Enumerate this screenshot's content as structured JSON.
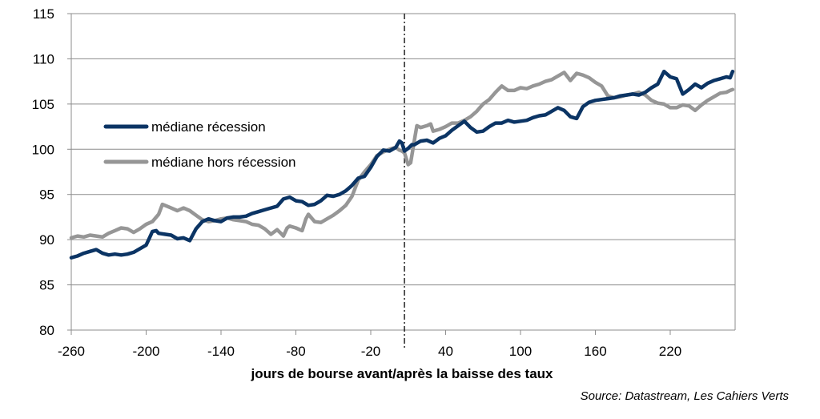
{
  "chart_data": {
    "type": "line",
    "title": "",
    "xlabel": "jours de bourse avant/après la baisse des  taux",
    "ylabel": "",
    "source": "Source: Datastream, Les Cahiers Verts",
    "xlim": [
      -260,
      272
    ],
    "ylim": [
      80,
      115
    ],
    "x_ticks": [
      -260,
      -200,
      -140,
      -80,
      -20,
      40,
      100,
      160,
      220
    ],
    "x_tick_labels": [
      "-260",
      "-200",
      "-140",
      "-80",
      "-20",
      "40",
      "100",
      "160",
      "220"
    ],
    "y_ticks": [
      80,
      85,
      90,
      95,
      100,
      105,
      110,
      115
    ],
    "y_tick_labels": [
      "80",
      "85",
      "90",
      "95",
      "100",
      "105",
      "110",
      "115"
    ],
    "grid": "horizontal",
    "reference_line": {
      "x": 7,
      "style": "dash-dot"
    },
    "legend_position": "left",
    "series": [
      {
        "name": "médiane récession",
        "color": "#0b3464",
        "x": [
          -260,
          -255,
          -250,
          -245,
          -240,
          -235,
          -230,
          -225,
          -220,
          -215,
          -210,
          -205,
          -200,
          -197,
          -195,
          -192,
          -190,
          -185,
          -180,
          -175,
          -170,
          -165,
          -160,
          -155,
          -150,
          -145,
          -140,
          -135,
          -130,
          -125,
          -120,
          -115,
          -110,
          -105,
          -100,
          -95,
          -90,
          -85,
          -80,
          -75,
          -70,
          -65,
          -60,
          -55,
          -50,
          -45,
          -40,
          -35,
          -30,
          -25,
          -20,
          -15,
          -10,
          -5,
          0,
          3,
          5,
          7,
          10,
          13,
          15,
          20,
          25,
          30,
          35,
          40,
          45,
          50,
          55,
          60,
          65,
          70,
          75,
          80,
          85,
          90,
          95,
          100,
          105,
          110,
          115,
          120,
          125,
          130,
          135,
          140,
          145,
          150,
          155,
          160,
          165,
          170,
          175,
          180,
          185,
          190,
          195,
          200,
          205,
          210,
          215,
          220,
          225,
          230,
          235,
          240,
          245,
          250,
          255,
          260,
          265,
          268,
          270
        ],
        "values": [
          88.0,
          88.2,
          88.5,
          88.7,
          88.9,
          88.5,
          88.3,
          88.4,
          88.3,
          88.4,
          88.6,
          89.0,
          89.4,
          90.3,
          90.9,
          91.0,
          90.7,
          90.6,
          90.5,
          90.1,
          90.2,
          89.9,
          91.2,
          92.0,
          92.3,
          92.1,
          92.0,
          92.4,
          92.5,
          92.5,
          92.6,
          92.9,
          93.1,
          93.3,
          93.5,
          93.7,
          94.5,
          94.7,
          94.3,
          94.2,
          93.8,
          93.9,
          94.3,
          94.9,
          94.8,
          95.0,
          95.4,
          96.0,
          96.8,
          97.0,
          98.0,
          99.2,
          99.9,
          99.8,
          100.2,
          100.9,
          100.7,
          99.8,
          100.1,
          100.5,
          100.5,
          100.9,
          101.0,
          100.7,
          101.2,
          101.5,
          102.1,
          102.6,
          103.1,
          102.4,
          101.9,
          102.0,
          102.5,
          102.9,
          102.9,
          103.2,
          103.0,
          103.1,
          103.2,
          103.5,
          103.7,
          103.8,
          104.2,
          104.6,
          104.3,
          103.6,
          103.4,
          104.7,
          105.2,
          105.4,
          105.5,
          105.6,
          105.7,
          105.9,
          106.0,
          106.1,
          106.0,
          106.3,
          106.8,
          107.2,
          108.6,
          108.0,
          107.8,
          106.1,
          106.6,
          107.2,
          106.8,
          107.3,
          107.6,
          107.8,
          108.0,
          107.9,
          108.6
        ]
      },
      {
        "name": "médiane hors récession",
        "color": "#969696",
        "x": [
          -260,
          -255,
          -250,
          -245,
          -240,
          -235,
          -230,
          -225,
          -220,
          -215,
          -210,
          -205,
          -200,
          -195,
          -190,
          -187,
          -185,
          -180,
          -175,
          -170,
          -165,
          -160,
          -155,
          -150,
          -145,
          -140,
          -135,
          -130,
          -125,
          -120,
          -115,
          -110,
          -105,
          -100,
          -95,
          -92,
          -90,
          -87,
          -85,
          -80,
          -75,
          -72,
          -70,
          -65,
          -60,
          -55,
          -50,
          -45,
          -40,
          -35,
          -30,
          -25,
          -20,
          -15,
          -10,
          -5,
          0,
          3,
          5,
          7,
          10,
          12,
          15,
          17,
          20,
          25,
          28,
          30,
          35,
          40,
          45,
          50,
          55,
          60,
          65,
          70,
          75,
          80,
          85,
          90,
          95,
          100,
          105,
          110,
          115,
          120,
          125,
          130,
          135,
          140,
          145,
          150,
          155,
          160,
          165,
          170,
          175,
          180,
          185,
          190,
          195,
          200,
          205,
          210,
          215,
          220,
          225,
          230,
          235,
          240,
          245,
          250,
          255,
          260,
          265,
          268,
          270
        ],
        "values": [
          90.2,
          90.4,
          90.3,
          90.5,
          90.4,
          90.3,
          90.7,
          91.0,
          91.3,
          91.2,
          90.8,
          91.2,
          91.7,
          92.0,
          92.8,
          93.9,
          93.8,
          93.5,
          93.2,
          93.5,
          93.2,
          92.7,
          92.2,
          92.0,
          92.1,
          92.3,
          92.4,
          92.2,
          92.1,
          92.0,
          91.7,
          91.6,
          91.2,
          90.6,
          91.1,
          90.7,
          90.4,
          91.3,
          91.5,
          91.3,
          91.0,
          92.3,
          92.8,
          92.0,
          91.9,
          92.3,
          92.7,
          93.2,
          93.8,
          94.8,
          96.6,
          97.5,
          98.3,
          99.3,
          99.7,
          100.0,
          100.2,
          99.9,
          99.8,
          99.6,
          98.3,
          98.5,
          101.0,
          102.6,
          102.4,
          102.6,
          102.8,
          102.0,
          102.2,
          102.5,
          102.9,
          102.9,
          103.2,
          103.6,
          104.2,
          105.0,
          105.5,
          106.3,
          107.0,
          106.5,
          106.5,
          106.8,
          106.7,
          107.0,
          107.2,
          107.5,
          107.7,
          108.1,
          108.5,
          107.6,
          108.4,
          108.2,
          107.9,
          107.4,
          107.0,
          105.9,
          105.7,
          105.8,
          106.0,
          106.1,
          106.3,
          106.0,
          105.4,
          105.1,
          105.0,
          104.6,
          104.6,
          104.9,
          104.8,
          104.3,
          104.9,
          105.4,
          105.8,
          106.2,
          106.3,
          106.5,
          106.6
        ]
      }
    ]
  }
}
